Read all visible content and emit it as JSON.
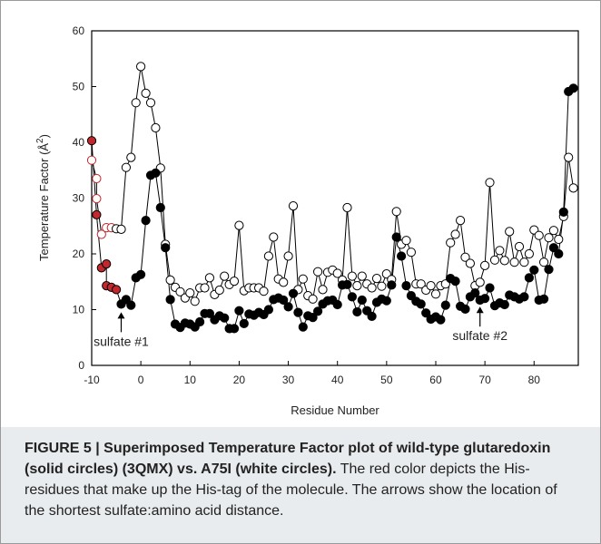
{
  "caption": {
    "figure_label": "FIGURE 5 |",
    "bold_text": "Superimposed Temperature Factor plot of wild-type glutaredoxin (solid circles) (3QMX) vs. A75I (white circles).",
    "body_text": "The red color depicts the His-residues that make up the His-tag of the molecule. The arrows show the location of the shortest sulfate:amino acid distance."
  },
  "chart_data": {
    "type": "line",
    "title": "",
    "xlabel": "Residue Number",
    "ylabel": "Temperature Factor  (Å²)",
    "ylabel_main": "Temperature Factor  (Å",
    "ylabel_sup": "2",
    "ylabel_end": ")",
    "xlim": [
      -10,
      89
    ],
    "ylim": [
      0,
      60
    ],
    "x_ticks": [
      -10,
      0,
      10,
      20,
      30,
      40,
      50,
      60,
      70,
      80
    ],
    "y_ticks": [
      0,
      10,
      20,
      30,
      40,
      50,
      60
    ],
    "x_tick_labels": [
      "-10",
      "0",
      "10",
      "20",
      "30",
      "40",
      "50",
      "60",
      "70",
      "80"
    ],
    "y_tick_labels": [
      "0",
      "10",
      "20",
      "30",
      "40",
      "50",
      "60"
    ],
    "grid": false,
    "colors": {
      "line": "#000000",
      "his_tag": "#c1272d",
      "caption_bg": "#e9ecee"
    },
    "annotations": [
      {
        "text": "sulfate #1",
        "x": -4,
        "y": 11
      },
      {
        "text": "sulfate #2",
        "x": 69,
        "y": 12
      }
    ],
    "series": [
      {
        "key": "wild_type",
        "fill": "solid",
        "his_tag_red_count": 7,
        "points": [
          [
            -10,
            40.3
          ],
          [
            -9,
            27.0
          ],
          [
            -8,
            17.5
          ],
          [
            -7,
            18.2
          ],
          [
            -7,
            14.3
          ],
          [
            -6,
            14.0
          ],
          [
            -5,
            13.6
          ],
          [
            -4,
            11.0
          ],
          [
            -3,
            11.8
          ],
          [
            -2,
            10.8
          ],
          [
            -1,
            15.7
          ],
          [
            0,
            16.3
          ],
          [
            1,
            26.0
          ],
          [
            2,
            34.1
          ],
          [
            3,
            34.5
          ],
          [
            4,
            28.3
          ],
          [
            5,
            21.1
          ],
          [
            6,
            11.8
          ],
          [
            7,
            7.4
          ],
          [
            8,
            6.8
          ],
          [
            9,
            7.6
          ],
          [
            10,
            7.4
          ],
          [
            11,
            6.9
          ],
          [
            12,
            7.8
          ],
          [
            13,
            9.3
          ],
          [
            14,
            9.3
          ],
          [
            15,
            8.2
          ],
          [
            16,
            8.9
          ],
          [
            17,
            8.5
          ],
          [
            18,
            6.6
          ],
          [
            19,
            6.6
          ],
          [
            20,
            9.8
          ],
          [
            21,
            7.5
          ],
          [
            22,
            9.2
          ],
          [
            23,
            9.0
          ],
          [
            24,
            9.5
          ],
          [
            25,
            9.1
          ],
          [
            26,
            10.0
          ],
          [
            27,
            11.8
          ],
          [
            28,
            12.1
          ],
          [
            29,
            11.7
          ],
          [
            30,
            10.5
          ],
          [
            31,
            12.9
          ],
          [
            32,
            9.5
          ],
          [
            33,
            6.9
          ],
          [
            34,
            8.9
          ],
          [
            35,
            8.6
          ],
          [
            36,
            9.7
          ],
          [
            37,
            11.0
          ],
          [
            38,
            11.6
          ],
          [
            39,
            11.7
          ],
          [
            40,
            10.9
          ],
          [
            41,
            14.4
          ],
          [
            42,
            14.5
          ],
          [
            43,
            12.3
          ],
          [
            44,
            9.6
          ],
          [
            45,
            11.7
          ],
          [
            46,
            9.8
          ],
          [
            47,
            8.8
          ],
          [
            48,
            11.3
          ],
          [
            49,
            11.9
          ],
          [
            50,
            11.6
          ],
          [
            51,
            14.4
          ],
          [
            52,
            23.0
          ],
          [
            53,
            19.6
          ],
          [
            54,
            14.3
          ],
          [
            55,
            12.5
          ],
          [
            56,
            11.5
          ],
          [
            57,
            11.0
          ],
          [
            58,
            9.4
          ],
          [
            59,
            8.3
          ],
          [
            60,
            8.7
          ],
          [
            61,
            8.2
          ],
          [
            62,
            10.8
          ],
          [
            63,
            15.6
          ],
          [
            64,
            15.1
          ],
          [
            65,
            10.6
          ],
          [
            66,
            10.1
          ],
          [
            67,
            12.3
          ],
          [
            68,
            13.0
          ],
          [
            69,
            11.7
          ],
          [
            70,
            12.0
          ],
          [
            71,
            13.9
          ],
          [
            72,
            10.7
          ],
          [
            73,
            11.2
          ],
          [
            74,
            10.9
          ],
          [
            75,
            12.6
          ],
          [
            76,
            12.3
          ],
          [
            77,
            11.9
          ],
          [
            78,
            12.3
          ],
          [
            79,
            15.7
          ],
          [
            80,
            17.1
          ],
          [
            81,
            11.7
          ],
          [
            82,
            11.9
          ],
          [
            83,
            17.2
          ],
          [
            84,
            21.1
          ],
          [
            85,
            20.0
          ],
          [
            86,
            27.5
          ],
          [
            87,
            49.1
          ],
          [
            88,
            49.7
          ]
        ]
      },
      {
        "key": "a75i",
        "fill": "white",
        "his_tag_red_count": 6,
        "points": [
          [
            -10,
            36.8
          ],
          [
            -9,
            33.5
          ],
          [
            -9,
            29.9
          ],
          [
            -8,
            23.5
          ],
          [
            -7,
            24.7
          ],
          [
            -6,
            24.7
          ],
          [
            -5,
            24.5
          ],
          [
            -4,
            24.4
          ],
          [
            -3,
            35.5
          ],
          [
            -2,
            37.3
          ],
          [
            -1,
            47.1
          ],
          [
            0,
            53.6
          ],
          [
            1,
            48.8
          ],
          [
            2,
            47.1
          ],
          [
            3,
            42.6
          ],
          [
            4,
            35.4
          ],
          [
            5,
            21.7
          ],
          [
            6,
            15.3
          ],
          [
            7,
            14.0
          ],
          [
            8,
            13.2
          ],
          [
            9,
            12.1
          ],
          [
            10,
            13.0
          ],
          [
            11,
            11.5
          ],
          [
            12,
            13.9
          ],
          [
            13,
            13.9
          ],
          [
            14,
            15.7
          ],
          [
            15,
            12.7
          ],
          [
            16,
            13.5
          ],
          [
            17,
            16.0
          ],
          [
            18,
            14.5
          ],
          [
            19,
            15.1
          ],
          [
            20,
            25.1
          ],
          [
            21,
            13.4
          ],
          [
            22,
            13.9
          ],
          [
            23,
            13.9
          ],
          [
            24,
            13.9
          ],
          [
            25,
            13.3
          ],
          [
            26,
            19.6
          ],
          [
            27,
            23.0
          ],
          [
            28,
            15.5
          ],
          [
            29,
            14.9
          ],
          [
            30,
            19.6
          ],
          [
            31,
            28.6
          ],
          [
            32,
            13.6
          ],
          [
            33,
            15.5
          ],
          [
            34,
            12.5
          ],
          [
            35,
            11.9
          ],
          [
            36,
            16.8
          ],
          [
            37,
            13.6
          ],
          [
            38,
            16.7
          ],
          [
            39,
            17.1
          ],
          [
            40,
            16.5
          ],
          [
            41,
            15.3
          ],
          [
            42,
            28.3
          ],
          [
            43,
            16.0
          ],
          [
            44,
            14.3
          ],
          [
            45,
            16.0
          ],
          [
            46,
            14.6
          ],
          [
            47,
            13.9
          ],
          [
            48,
            15.6
          ],
          [
            49,
            14.2
          ],
          [
            50,
            16.4
          ],
          [
            51,
            15.4
          ],
          [
            52,
            27.6
          ],
          [
            53,
            21.7
          ],
          [
            54,
            22.4
          ],
          [
            55,
            20.3
          ],
          [
            56,
            14.6
          ],
          [
            57,
            14.6
          ],
          [
            58,
            13.5
          ],
          [
            59,
            14.3
          ],
          [
            60,
            12.8
          ],
          [
            61,
            14.3
          ],
          [
            62,
            14.6
          ],
          [
            63,
            22.0
          ],
          [
            64,
            23.5
          ],
          [
            65,
            26.0
          ],
          [
            66,
            19.4
          ],
          [
            67,
            18.3
          ],
          [
            68,
            14.3
          ],
          [
            69,
            14.9
          ],
          [
            70,
            17.9
          ],
          [
            71,
            32.8
          ],
          [
            72,
            18.9
          ],
          [
            73,
            20.6
          ],
          [
            74,
            18.8
          ],
          [
            75,
            24.0
          ],
          [
            76,
            18.5
          ],
          [
            77,
            21.3
          ],
          [
            78,
            18.5
          ],
          [
            79,
            20.0
          ],
          [
            80,
            24.3
          ],
          [
            81,
            23.3
          ],
          [
            82,
            18.5
          ],
          [
            83,
            22.9
          ],
          [
            84,
            24.2
          ],
          [
            85,
            22.6
          ],
          [
            86,
            26.7
          ],
          [
            87,
            37.3
          ],
          [
            88,
            31.8
          ]
        ]
      }
    ]
  }
}
